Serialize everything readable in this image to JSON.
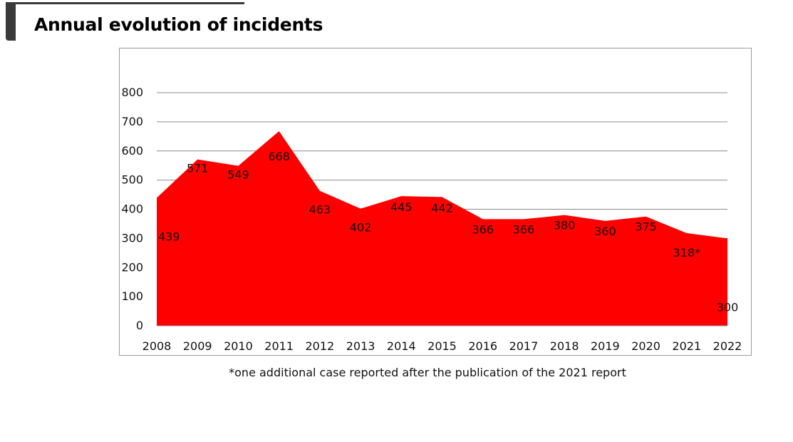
{
  "page": {
    "title": "Annual evolution of incidents",
    "footnote": "*one additional case reported after the publication of the 2021 report"
  },
  "chart_data": {
    "type": "area",
    "title": "",
    "xlabel": "",
    "ylabel": "",
    "categories": [
      "2008",
      "2009",
      "2010",
      "2011",
      "2012",
      "2013",
      "2014",
      "2015",
      "2016",
      "2017",
      "2018",
      "2019",
      "2020",
      "2021",
      "2022"
    ],
    "series": [
      {
        "name": "",
        "values": [
          439,
          571,
          549,
          668,
          463,
          402,
          445,
          442,
          366,
          366,
          380,
          360,
          375,
          318,
          300
        ],
        "data_labels": [
          "439",
          "571",
          "549",
          "668",
          "463",
          "402",
          "445",
          "442",
          "366",
          "366",
          "380",
          "360",
          "375",
          "318*",
          "300"
        ],
        "color": "#ff0000"
      }
    ],
    "ylim": [
      0,
      800
    ],
    "yticks": [
      "0",
      "100",
      "200",
      "300",
      "400",
      "500",
      "600",
      "700",
      "800"
    ],
    "grid": true,
    "legend": "none"
  }
}
